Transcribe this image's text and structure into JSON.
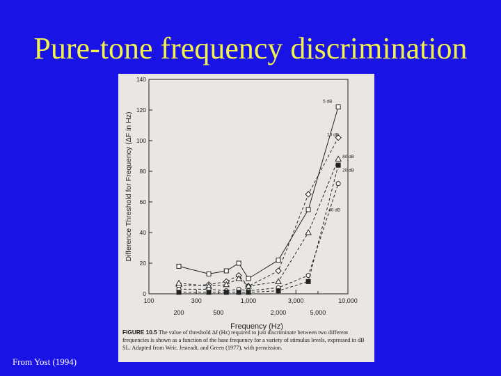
{
  "slide": {
    "title": "Pure-tone frequency discrimination",
    "source": "From Yost (1994)"
  },
  "figure": {
    "caption_label": "FIGURE 10.5",
    "caption_text": "The value of threshold Δf (Hz) required to just discriminate between two different frequencies is shown as a function of the base frequency for a variety of stimulus levels, expressed in dB SL. Adapted from Weir, Jesteadt, and Green (1977), with permission."
  },
  "chart_data": {
    "type": "line",
    "xlabel": "Frequency (Hz)",
    "ylabel": "Difference Threshold for Frequency (ΔF in Hz)",
    "x_scale": "log",
    "xlim": [
      100,
      10000
    ],
    "ylim": [
      0,
      140
    ],
    "x_ticks_top": [
      100,
      300,
      1000,
      3000,
      10000
    ],
    "x_ticks_top_labels": [
      "100",
      "300",
      "1,000",
      "3,000",
      "10,000"
    ],
    "x_ticks_bottom": [
      200,
      500,
      2000,
      5000
    ],
    "x_ticks_bottom_labels": [
      "200",
      "500",
      "2,000",
      "5,000"
    ],
    "y_ticks": [
      0,
      20,
      40,
      60,
      80,
      100,
      120,
      140
    ],
    "y_tick_labels": [
      "0",
      "20",
      "40",
      "60",
      "80",
      "100",
      "120",
      "140"
    ],
    "x": [
      200,
      400,
      600,
      800,
      1000,
      2000,
      4000,
      8000
    ],
    "series": [
      {
        "name": "5 dB",
        "marker": "square-open",
        "dash": "solid",
        "values": [
          18,
          13,
          15,
          20,
          10,
          22,
          55,
          122
        ]
      },
      {
        "name": "10 dB",
        "marker": "diamond-open",
        "dash": "dashed",
        "values": [
          5,
          6,
          8,
          12,
          5,
          15,
          65,
          102
        ]
      },
      {
        "name": "20 dB",
        "marker": "triangle-open",
        "dash": "dashed",
        "values": [
          7,
          5,
          6,
          10,
          5,
          8,
          40,
          88
        ]
      },
      {
        "name": "40 dB",
        "marker": "circle-open",
        "dash": "dashed",
        "values": [
          3,
          3,
          2,
          3,
          2,
          4,
          12,
          72
        ]
      },
      {
        "name": "80 dB",
        "marker": "square-filled",
        "dash": "dashed",
        "values": [
          1,
          1,
          1,
          1,
          1,
          2,
          8,
          84
        ]
      }
    ]
  }
}
